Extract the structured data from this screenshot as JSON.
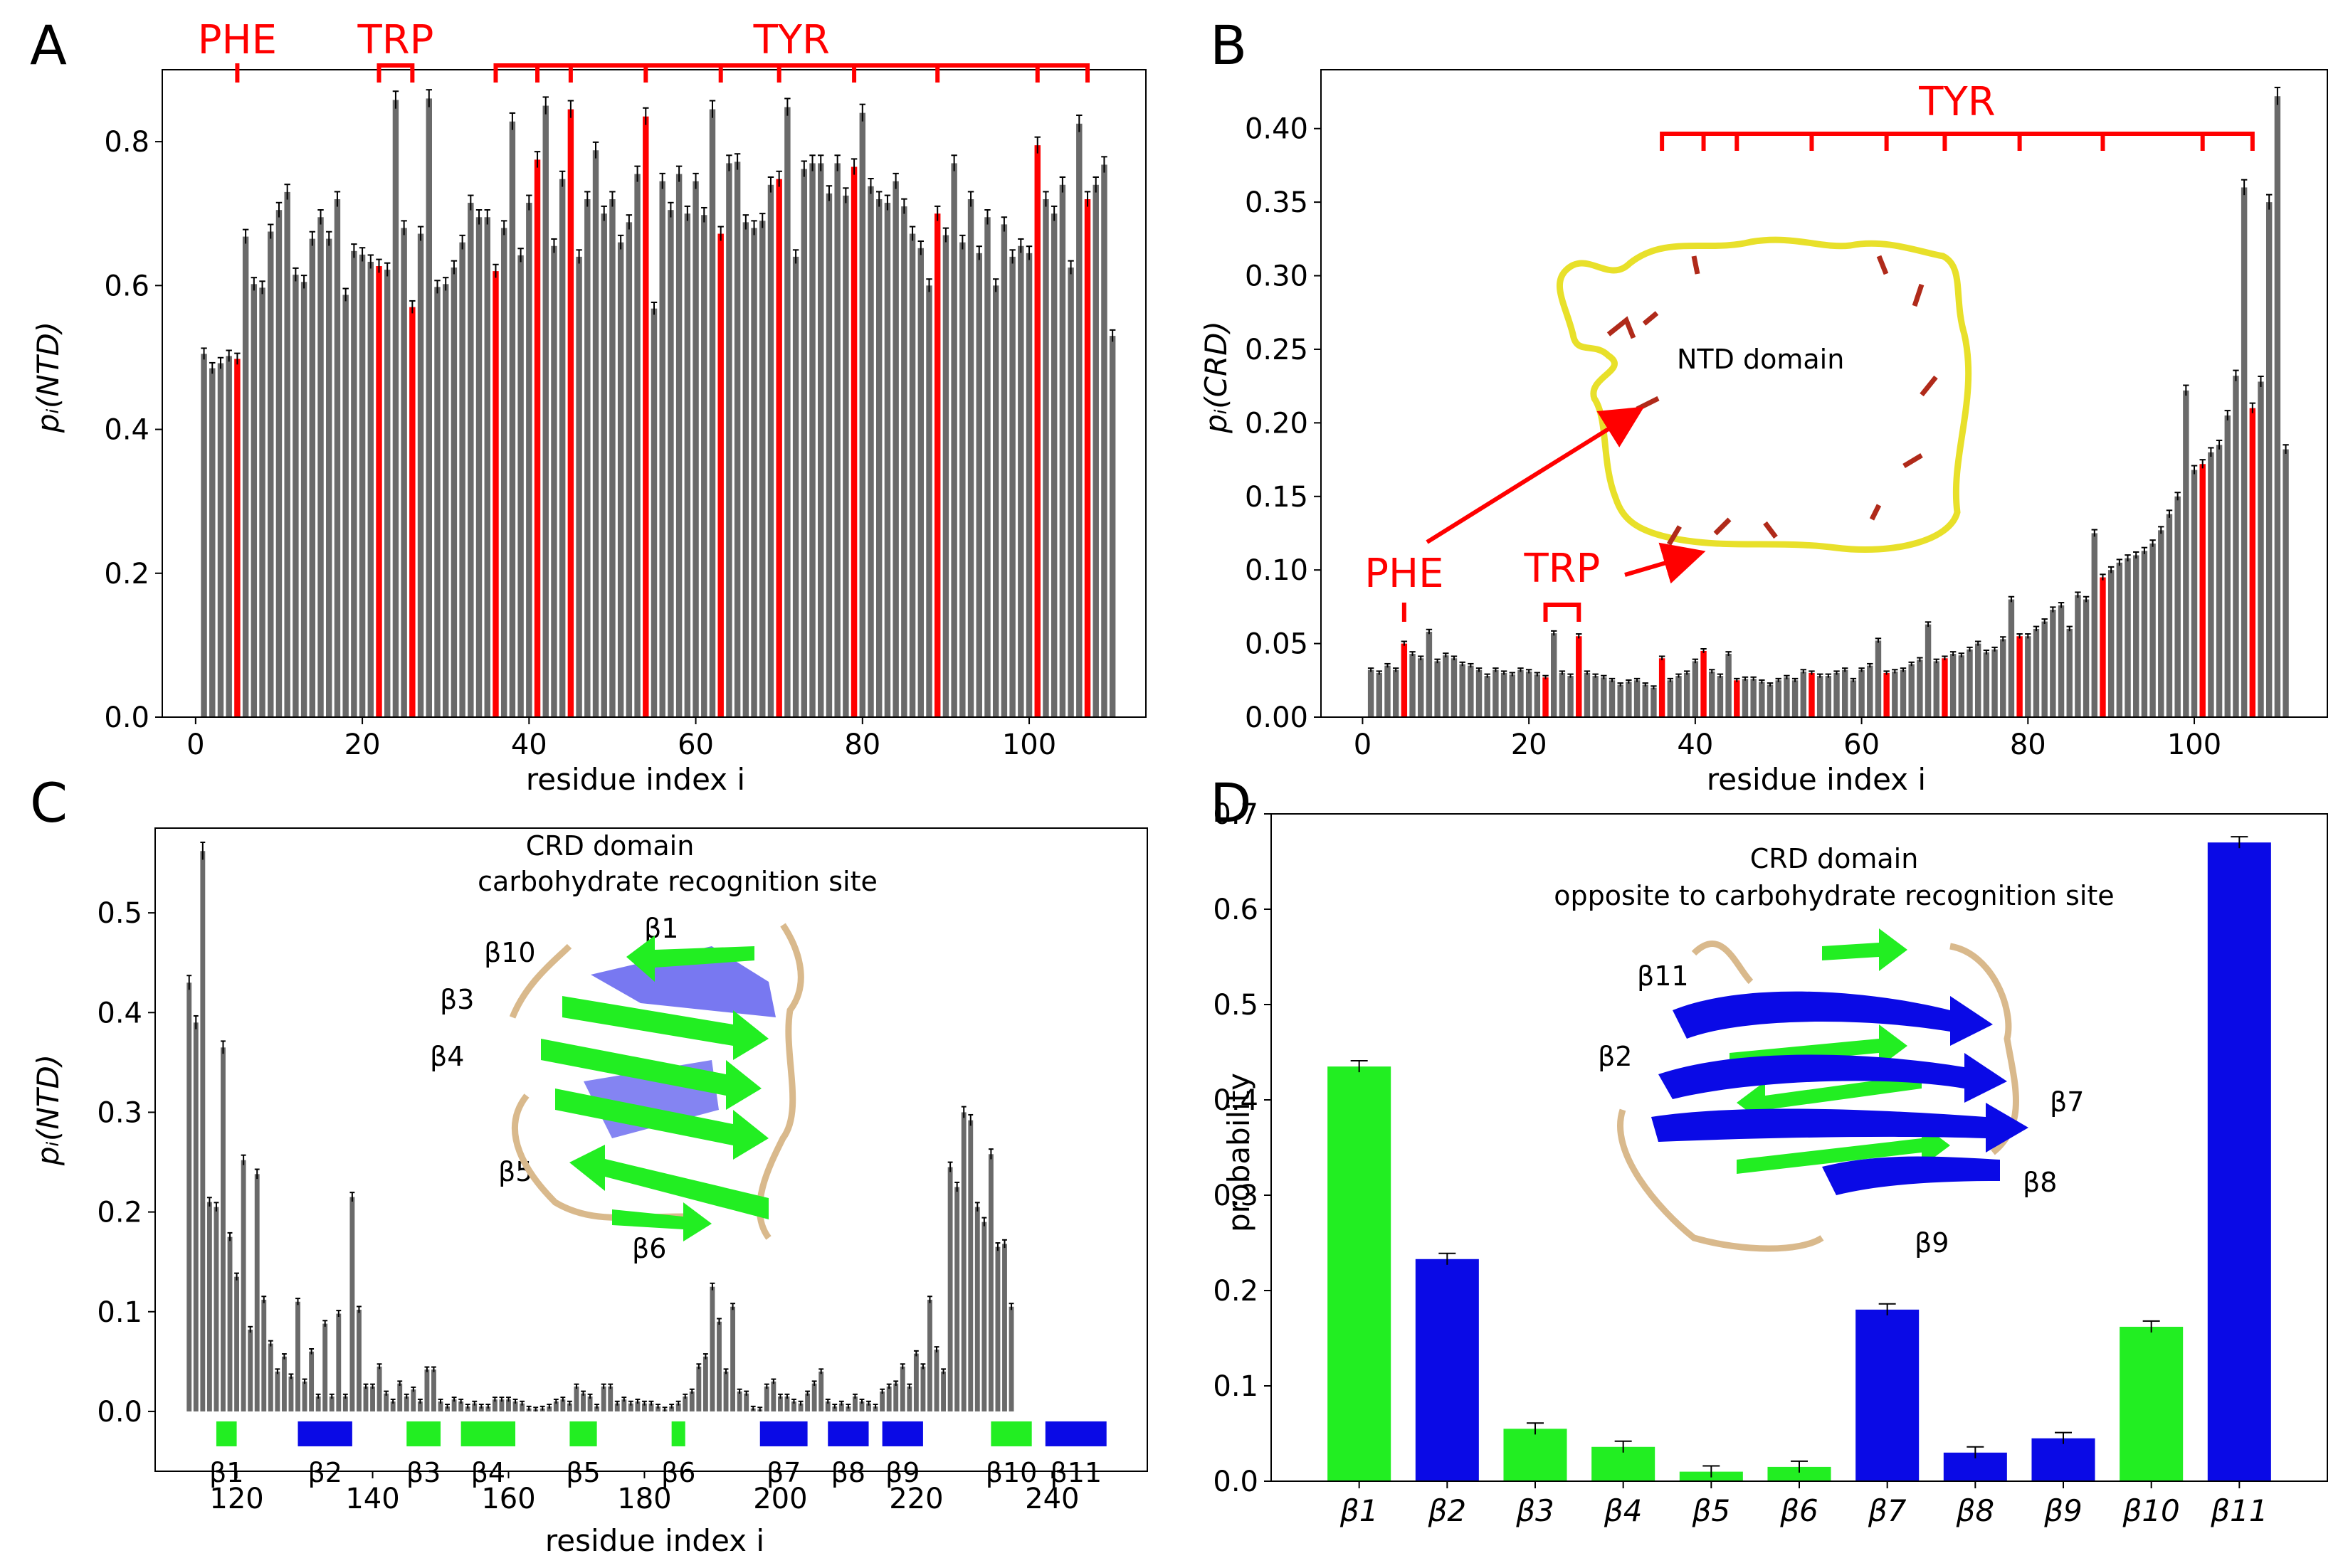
{
  "panels": {
    "A": {
      "letter": "A",
      "ylabel": "pᵢ(NTD)",
      "xlabel": "residue index i"
    },
    "B": {
      "letter": "B",
      "ylabel": "pᵢ(CRD)",
      "xlabel": "residue index i",
      "inset_label": "NTD domain"
    },
    "C": {
      "letter": "C",
      "ylabel": "pᵢ(NTD)",
      "xlabel": "residue index i",
      "title_line1": "CRD domain",
      "title_line2": "carbohydrate recognition site",
      "structure_labels": [
        "β1",
        "β10",
        "β3",
        "β4",
        "β5",
        "β6"
      ]
    },
    "D": {
      "letter": "D",
      "ylabel": "probability",
      "title_line1": "CRD domain",
      "title_line2": "opposite to carbohydrate recognition site",
      "structure_labels": [
        "β11",
        "β2",
        "β7",
        "β8",
        "β9"
      ]
    }
  },
  "colors": {
    "bar": "#6a6a6a",
    "highlight": "#ff0000",
    "green": "#22ee22",
    "blue": "#0a0ae6",
    "tan": "#d9b98c",
    "yellow": "#e8e02a"
  },
  "chart_data": [
    {
      "id": "A",
      "type": "bar",
      "xlim": [
        -4,
        114
      ],
      "ylim": [
        0,
        0.9
      ],
      "xticks": [
        0,
        20,
        40,
        60,
        80,
        100
      ],
      "yticks": [
        0.0,
        0.2,
        0.4,
        0.6,
        0.8
      ],
      "x_start": 1,
      "values": [
        0.505,
        0.485,
        0.492,
        0.502,
        0.498,
        0.668,
        0.602,
        0.597,
        0.675,
        0.705,
        0.73,
        0.615,
        0.605,
        0.665,
        0.695,
        0.665,
        0.72,
        0.587,
        0.648,
        0.643,
        0.633,
        0.627,
        0.622,
        0.858,
        0.68,
        0.57,
        0.672,
        0.86,
        0.598,
        0.602,
        0.625,
        0.66,
        0.715,
        0.695,
        0.695,
        0.62,
        0.68,
        0.828,
        0.642,
        0.715,
        0.775,
        0.85,
        0.655,
        0.748,
        0.845,
        0.64,
        0.72,
        0.788,
        0.7,
        0.72,
        0.66,
        0.688,
        0.755,
        0.835,
        0.568,
        0.745,
        0.705,
        0.755,
        0.7,
        0.745,
        0.698,
        0.845,
        0.672,
        0.77,
        0.772,
        0.688,
        0.68,
        0.69,
        0.74,
        0.748,
        0.848,
        0.64,
        0.762,
        0.77,
        0.77,
        0.728,
        0.77,
        0.725,
        0.765,
        0.84,
        0.738,
        0.72,
        0.715,
        0.745,
        0.71,
        0.672,
        0.652,
        0.6,
        0.7,
        0.67,
        0.77,
        0.66,
        0.72,
        0.645,
        0.695,
        0.6,
        0.685,
        0.64,
        0.655,
        0.645,
        0.795,
        0.72,
        0.7,
        0.74,
        0.625,
        0.825,
        0.72,
        0.74,
        0.768,
        0.53
      ],
      "highlight_indices": [
        5,
        22,
        26,
        36,
        41,
        45,
        54,
        63,
        70,
        79,
        89,
        101,
        107
      ],
      "annotations": [
        {
          "label": "PHE",
          "ticks": [
            5
          ]
        },
        {
          "label": "TRP",
          "ticks": [
            22,
            26
          ]
        },
        {
          "label": "TYR",
          "ticks": [
            36,
            41,
            45,
            54,
            63,
            70,
            79,
            89,
            101,
            107
          ]
        }
      ]
    },
    {
      "id": "B",
      "type": "bar",
      "xlim": [
        -5,
        116
      ],
      "ylim": [
        0,
        0.44
      ],
      "xticks": [
        0,
        20,
        40,
        60,
        80,
        100
      ],
      "yticks": [
        0.0,
        0.05,
        0.1,
        0.15,
        0.2,
        0.25,
        0.3,
        0.35,
        0.4
      ],
      "x_start": 1,
      "values": [
        0.032,
        0.03,
        0.035,
        0.032,
        0.05,
        0.043,
        0.04,
        0.058,
        0.038,
        0.042,
        0.04,
        0.036,
        0.035,
        0.032,
        0.028,
        0.032,
        0.03,
        0.029,
        0.032,
        0.031,
        0.029,
        0.027,
        0.057,
        0.03,
        0.028,
        0.055,
        0.03,
        0.028,
        0.027,
        0.025,
        0.022,
        0.024,
        0.025,
        0.022,
        0.02,
        0.04,
        0.025,
        0.028,
        0.03,
        0.038,
        0.045,
        0.031,
        0.028,
        0.043,
        0.025,
        0.026,
        0.026,
        0.024,
        0.022,
        0.025,
        0.027,
        0.025,
        0.031,
        0.03,
        0.028,
        0.028,
        0.03,
        0.032,
        0.025,
        0.032,
        0.035,
        0.052,
        0.03,
        0.031,
        0.032,
        0.036,
        0.039,
        0.063,
        0.038,
        0.04,
        0.043,
        0.042,
        0.046,
        0.05,
        0.044,
        0.046,
        0.053,
        0.08,
        0.055,
        0.055,
        0.06,
        0.065,
        0.073,
        0.076,
        0.06,
        0.083,
        0.08,
        0.125,
        0.095,
        0.1,
        0.105,
        0.108,
        0.11,
        0.113,
        0.118,
        0.127,
        0.138,
        0.15,
        0.222,
        0.168,
        0.172,
        0.18,
        0.185,
        0.205,
        0.232,
        0.36,
        0.21,
        0.228,
        0.35,
        0.422,
        0.182
      ],
      "highlight_indices": [
        5,
        22,
        26,
        36,
        41,
        45,
        54,
        63,
        70,
        79,
        89,
        101,
        107
      ],
      "annotations": [
        {
          "label": "PHE",
          "ticks": [
            5
          ]
        },
        {
          "label": "TRP",
          "ticks": [
            22,
            26
          ]
        },
        {
          "label": "TYR",
          "ticks": [
            36,
            41,
            45,
            54,
            63,
            70,
            79,
            89,
            101,
            107
          ]
        }
      ]
    },
    {
      "id": "C",
      "type": "bar",
      "xlim": [
        108,
        254
      ],
      "ylim": [
        -0.06,
        0.585
      ],
      "xticks": [
        120,
        140,
        160,
        180,
        200,
        220,
        240
      ],
      "yticks": [
        0.0,
        0.1,
        0.2,
        0.3,
        0.4,
        0.5
      ],
      "x_start": 113,
      "values": [
        0.43,
        0.39,
        0.562,
        0.21,
        0.205,
        0.365,
        0.175,
        0.135,
        0.252,
        0.082,
        0.238,
        0.112,
        0.068,
        0.04,
        0.055,
        0.035,
        0.11,
        0.03,
        0.06,
        0.015,
        0.088,
        0.015,
        0.098,
        0.015,
        0.215,
        0.102,
        0.025,
        0.025,
        0.045,
        0.018,
        0.01,
        0.028,
        0.015,
        0.022,
        0.01,
        0.042,
        0.042,
        0.01,
        0.005,
        0.012,
        0.01,
        0.005,
        0.008,
        0.005,
        0.005,
        0.012,
        0.012,
        0.012,
        0.01,
        0.008,
        0.003,
        0.002,
        0.003,
        0.005,
        0.01,
        0.012,
        0.008,
        0.025,
        0.018,
        0.015,
        0.005,
        0.025,
        0.025,
        0.008,
        0.012,
        0.008,
        0.01,
        0.008,
        0.008,
        0.005,
        0.002,
        0.005,
        0.008,
        0.015,
        0.02,
        0.045,
        0.055,
        0.125,
        0.09,
        0.04,
        0.105,
        0.02,
        0.018,
        0.003,
        0.002,
        0.025,
        0.03,
        0.015,
        0.015,
        0.01,
        0.008,
        0.018,
        0.028,
        0.04,
        0.01,
        0.005,
        0.008,
        0.005,
        0.015,
        0.01,
        0.008,
        0.005,
        0.02,
        0.025,
        0.028,
        0.045,
        0.025,
        0.058,
        0.045,
        0.112,
        0.062,
        0.04,
        0.245,
        0.225,
        0.3,
        0.292,
        0.205,
        0.19,
        0.258,
        0.165,
        0.168,
        0.105
      ],
      "sheets": [
        {
          "label": "β1",
          "start": 117,
          "end": 120,
          "color": "green"
        },
        {
          "label": "β2",
          "start": 129,
          "end": 137,
          "color": "blue"
        },
        {
          "label": "β3",
          "start": 145,
          "end": 150,
          "color": "green"
        },
        {
          "label": "β4",
          "start": 153,
          "end": 161,
          "color": "green"
        },
        {
          "label": "β5",
          "start": 169,
          "end": 173,
          "color": "green"
        },
        {
          "label": "β6",
          "start": 184,
          "end": 186,
          "color": "green"
        },
        {
          "label": "β7",
          "start": 197,
          "end": 204,
          "color": "blue"
        },
        {
          "label": "β8",
          "start": 207,
          "end": 213,
          "color": "blue"
        },
        {
          "label": "β9",
          "start": 215,
          "end": 221,
          "color": "blue"
        },
        {
          "label": "β10",
          "start": 231,
          "end": 237,
          "color": "green"
        },
        {
          "label": "β11",
          "start": 239,
          "end": 248,
          "color": "blue"
        }
      ]
    },
    {
      "id": "D",
      "type": "bar",
      "ylim": [
        0,
        0.7
      ],
      "yticks": [
        0.0,
        0.1,
        0.2,
        0.3,
        0.4,
        0.5,
        0.6,
        0.7
      ],
      "categories": [
        "β1",
        "β2",
        "β3",
        "β4",
        "β5",
        "β6",
        "β7",
        "β8",
        "β9",
        "β10",
        "β11"
      ],
      "values": [
        0.435,
        0.233,
        0.055,
        0.036,
        0.01,
        0.015,
        0.18,
        0.03,
        0.045,
        0.162,
        0.67
      ],
      "colors": [
        "green",
        "blue",
        "green",
        "green",
        "green",
        "green",
        "blue",
        "blue",
        "blue",
        "green",
        "blue"
      ]
    }
  ]
}
